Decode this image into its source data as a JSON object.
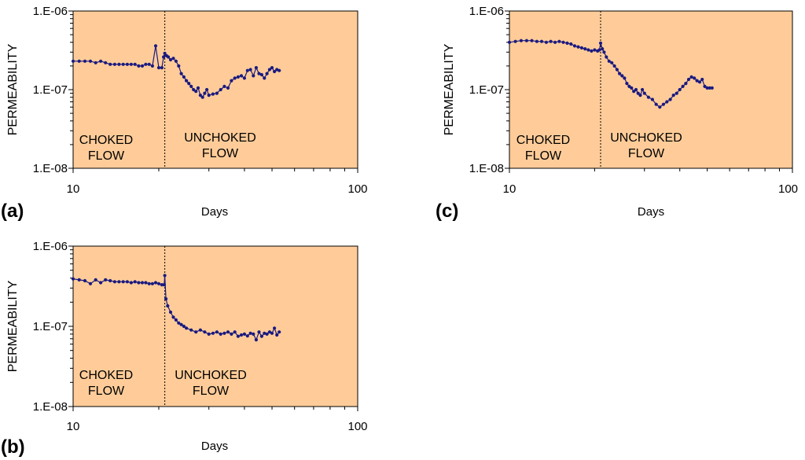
{
  "chart_data": [
    {
      "id": "a",
      "type": "line",
      "panel_label": "(a)",
      "xlabel": "Days",
      "ylabel": "PERMEABILITY",
      "xscale": "log",
      "yscale": "log",
      "xlim": [
        10,
        100
      ],
      "ylim": [
        1e-08,
        1e-06
      ],
      "xticks": [
        "10",
        "100"
      ],
      "yticks": [
        "1.E-08",
        "1.E-07",
        "1.E-06"
      ],
      "divider_day": 21,
      "annotations": {
        "left": [
          "CHOKED",
          "FLOW"
        ],
        "right": [
          "UNCHOKED",
          "FLOW"
        ]
      },
      "plot_color": "#FFCC99",
      "series_color": "#1A1A80",
      "x": [
        10.0,
        10.5,
        11.0,
        11.5,
        12.0,
        12.5,
        13.0,
        13.5,
        14.0,
        14.5,
        15.0,
        15.5,
        16.0,
        16.5,
        17.0,
        17.5,
        18.0,
        18.5,
        19.0,
        19.5,
        20.0,
        20.5,
        20.8,
        21.0,
        21.3,
        21.6,
        22.0,
        22.5,
        23.0,
        23.5,
        24.0,
        24.5,
        25.0,
        25.5,
        26.0,
        26.5,
        27.0,
        27.5,
        28.0,
        28.5,
        29.0,
        29.5,
        30.0,
        31.0,
        32.0,
        33.0,
        34.0,
        35.0,
        36.0,
        37.0,
        38.0,
        39.0,
        40.0,
        41.0,
        42.0,
        43.0,
        44.0,
        45.0,
        46.0,
        47.0,
        48.0,
        49.0,
        50.0,
        51.0,
        52.0,
        53.0
      ],
      "values": [
        2.3e-07,
        2.3e-07,
        2.3e-07,
        2.3e-07,
        2.2e-07,
        2.3e-07,
        2.2e-07,
        2.1e-07,
        2.1e-07,
        2.1e-07,
        2.1e-07,
        2.1e-07,
        2.1e-07,
        2.1e-07,
        2e-07,
        2e-07,
        2.1e-07,
        2.1e-07,
        2e-07,
        3.6e-07,
        1.9e-07,
        1.9e-07,
        2.6e-07,
        2.9e-07,
        2.7e-07,
        2.6e-07,
        2.4e-07,
        2.5e-07,
        2.3e-07,
        2e-07,
        1.6e-07,
        1.45e-07,
        1.3e-07,
        1.2e-07,
        1.1e-07,
        1e-07,
        9.5e-08,
        1.05e-07,
        8.5e-08,
        8e-08,
        9e-08,
        1e-07,
        8.5e-08,
        8.8e-08,
        9e-08,
        1e-07,
        1.1e-07,
        1.05e-07,
        1.3e-07,
        1.4e-07,
        1.45e-07,
        1.5e-07,
        1.4e-07,
        1.75e-07,
        1.8e-07,
        1.5e-07,
        1.9e-07,
        1.6e-07,
        1.55e-07,
        1.4e-07,
        1.6e-07,
        1.8e-07,
        1.9e-07,
        1.7e-07,
        1.8e-07,
        1.75e-07
      ]
    },
    {
      "id": "b",
      "type": "line",
      "panel_label": "(b)",
      "xlabel": "Days",
      "ylabel": "PERMEABILITY",
      "xscale": "log",
      "yscale": "log",
      "xlim": [
        10,
        100
      ],
      "ylim": [
        1e-08,
        1e-06
      ],
      "xticks": [
        "10",
        "100"
      ],
      "yticks": [
        "1.E-08",
        "1.E-07",
        "1.E-06"
      ],
      "divider_day": 21,
      "annotations": {
        "left": [
          "CHOKED",
          "FLOW"
        ],
        "right": [
          "UNCHOKED",
          "FLOW"
        ]
      },
      "plot_color": "#FFCC99",
      "series_color": "#1A1A80",
      "x": [
        10.0,
        10.5,
        11.0,
        11.5,
        12.0,
        12.5,
        13.0,
        13.5,
        14.0,
        14.5,
        15.0,
        15.5,
        16.0,
        16.5,
        17.0,
        17.5,
        18.0,
        18.5,
        19.0,
        19.5,
        20.0,
        20.5,
        20.9,
        21.0,
        21.2,
        21.5,
        22.0,
        22.5,
        23.0,
        23.5,
        24.0,
        24.5,
        25.0,
        26.0,
        27.0,
        28.0,
        29.0,
        30.0,
        31.0,
        32.0,
        33.0,
        34.0,
        35.0,
        36.0,
        37.0,
        38.0,
        39.0,
        40.0,
        41.0,
        42.0,
        43.0,
        44.0,
        45.0,
        46.0,
        47.0,
        48.0,
        49.0,
        50.0,
        51.0,
        52.0,
        53.0
      ],
      "values": [
        3.9e-07,
        3.8e-07,
        3.7e-07,
        3.4e-07,
        3.8e-07,
        3.5e-07,
        3.8e-07,
        3.7e-07,
        3.6e-07,
        3.6e-07,
        3.6e-07,
        3.6e-07,
        3.5e-07,
        3.6e-07,
        3.5e-07,
        3.5e-07,
        3.5e-07,
        3.4e-07,
        3.4e-07,
        3.5e-07,
        3.4e-07,
        3.3e-07,
        3.3e-07,
        4.3e-07,
        2.2e-07,
        1.8e-07,
        1.5e-07,
        1.3e-07,
        1.2e-07,
        1.1e-07,
        1.05e-07,
        1e-07,
        9.5e-08,
        9e-08,
        8.5e-08,
        9e-08,
        8.5e-08,
        8e-08,
        8.2e-08,
        8.5e-08,
        8e-08,
        8.2e-08,
        8.5e-08,
        8e-08,
        8.5e-08,
        7.5e-08,
        7.8e-08,
        8e-08,
        7.6e-08,
        8.2e-08,
        8e-08,
        6.8e-08,
        8.5e-08,
        7.5e-08,
        8.2e-08,
        8e-08,
        8.5e-08,
        8.2e-08,
        9.5e-08,
        7.8e-08,
        8.5e-08
      ]
    },
    {
      "id": "c",
      "type": "line",
      "panel_label": "(c)",
      "xlabel": "Days",
      "ylabel": "PERMEABILITY",
      "xscale": "log",
      "yscale": "log",
      "xlim": [
        10,
        100
      ],
      "ylim": [
        1e-08,
        1e-06
      ],
      "xticks": [
        "10",
        "100"
      ],
      "yticks": [
        "1.E-08",
        "1.E-07",
        "1.E-06"
      ],
      "divider_day": 21,
      "annotations": {
        "left": [
          "CHOKED",
          "FLOW"
        ],
        "right": [
          "UNCHOKED",
          "FLOW"
        ]
      },
      "plot_color": "#FFCC99",
      "series_color": "#1A1A80",
      "x": [
        10.0,
        10.5,
        11.0,
        11.5,
        12.0,
        12.5,
        13.0,
        13.5,
        14.0,
        14.5,
        15.0,
        15.5,
        16.0,
        16.5,
        17.0,
        17.5,
        18.0,
        18.5,
        19.0,
        19.5,
        20.0,
        20.5,
        20.8,
        21.0,
        21.3,
        21.6,
        22.0,
        22.5,
        23.0,
        23.5,
        24.0,
        24.5,
        25.0,
        25.5,
        26.0,
        26.5,
        27.0,
        27.5,
        28.0,
        28.5,
        29.0,
        29.5,
        30.0,
        31.0,
        32.0,
        33.0,
        34.0,
        35.0,
        36.0,
        37.0,
        38.0,
        39.0,
        40.0,
        41.0,
        42.0,
        43.0,
        44.0,
        45.0,
        46.0,
        47.0,
        48.0,
        49.0,
        50.0,
        51.0,
        52.0
      ],
      "values": [
        4e-07,
        4.1e-07,
        4.2e-07,
        4.2e-07,
        4.2e-07,
        4.1e-07,
        4.1e-07,
        4e-07,
        4.1e-07,
        4e-07,
        4.1e-07,
        4e-07,
        3.9e-07,
        3.8e-07,
        3.6e-07,
        3.5e-07,
        3.4e-07,
        3.3e-07,
        3.2e-07,
        3.1e-07,
        3.2e-07,
        3.1e-07,
        3.2e-07,
        3.9e-07,
        3.3e-07,
        3e-07,
        2.6e-07,
        2.3e-07,
        2.2e-07,
        2e-07,
        1.8e-07,
        1.6e-07,
        1.5e-07,
        1.4e-07,
        1.2e-07,
        1.1e-07,
        1.05e-07,
        9.5e-08,
        1e-07,
        9e-08,
        8.5e-08,
        1e-07,
        9e-08,
        8e-08,
        7.5e-08,
        6.5e-08,
        6e-08,
        6.5e-08,
        7e-08,
        7.5e-08,
        8.5e-08,
        9e-08,
        1e-07,
        1.1e-07,
        1.2e-07,
        1.35e-07,
        1.45e-07,
        1.4e-07,
        1.3e-07,
        1.25e-07,
        1.35e-07,
        1.1e-07,
        1.05e-07,
        1.05e-07,
        1.05e-07
      ]
    }
  ]
}
